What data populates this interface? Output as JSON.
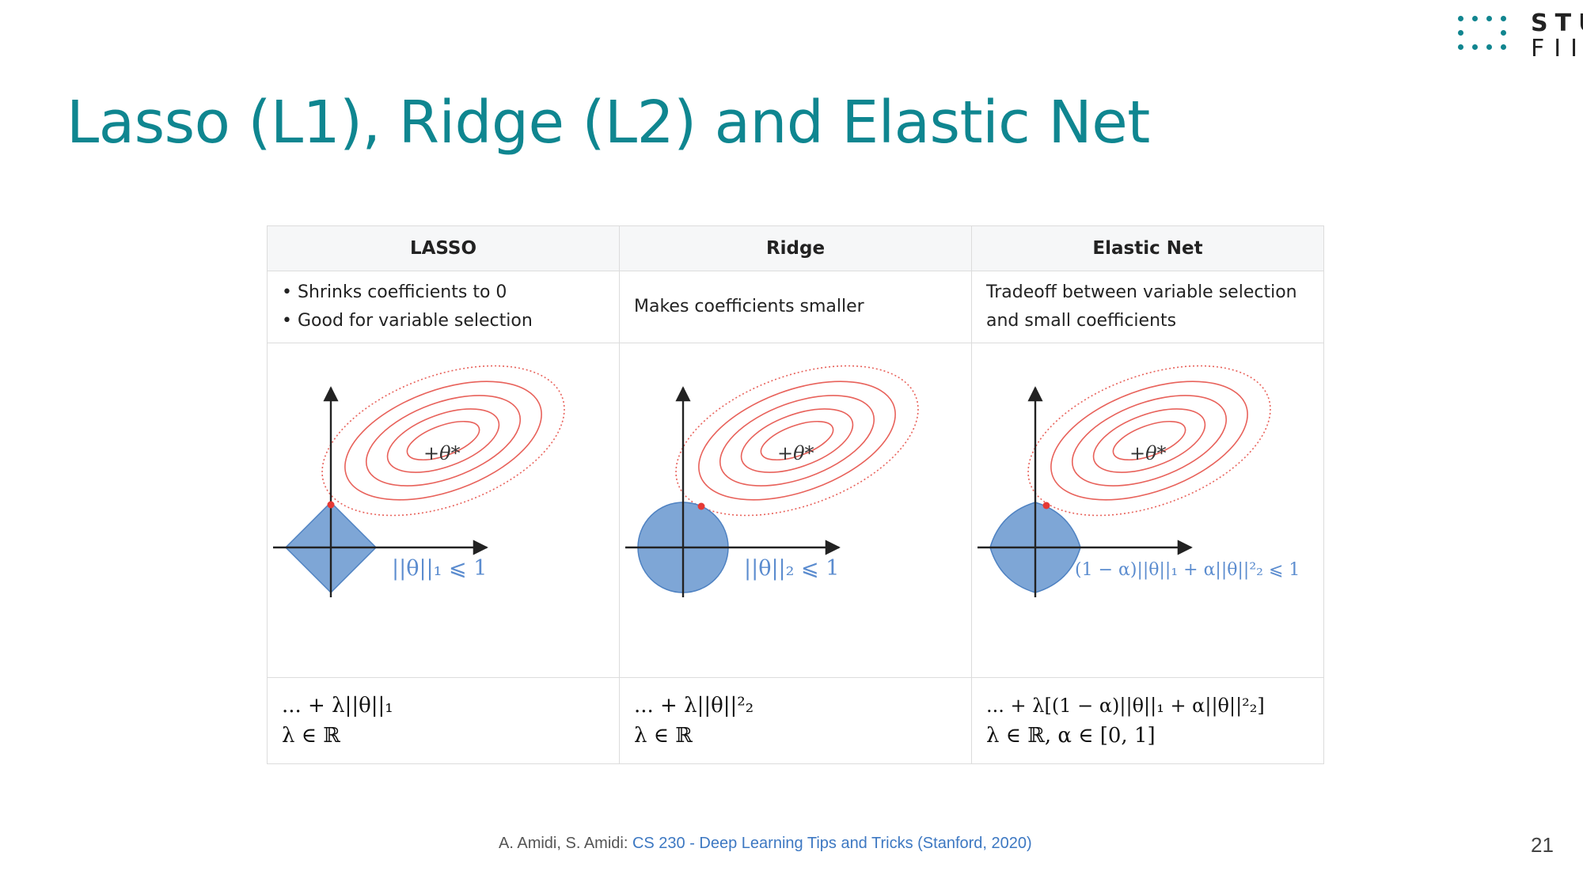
{
  "logo": {
    "line1": "STU",
    "line2": "FIIT"
  },
  "title": "Lasso (L1), Ridge (L2) and Elastic Net",
  "table": {
    "headers": [
      "LASSO",
      "Ridge",
      "Elastic Net"
    ],
    "lasso": {
      "bullets": [
        "Shrinks coefficients to 0",
        "Good for variable selection"
      ],
      "constraint_label": "||θ||₁ ⩽ 1",
      "optimum_label": "+θ*",
      "formula_line1": "... + λ||θ||₁",
      "formula_line2": "λ ∈ ℝ"
    },
    "ridge": {
      "text": "Makes coefficients smaller",
      "constraint_label": "||θ||₂ ⩽ 1",
      "optimum_label": "+θ*",
      "formula_line1": "... + λ||θ||²₂",
      "formula_line2": "λ ∈ ℝ"
    },
    "elastic": {
      "text_line1": "Tradeoff between variable selection",
      "text_line2": "and small coefficients",
      "constraint_label": "(1 − α)||θ||₁ + α||θ||²₂ ⩽ 1",
      "optimum_label": "+θ*",
      "formula_line1": "... + λ[(1 − α)||θ||₁ + α||θ||²₂]",
      "formula_line2": "λ ∈ ℝ, α ∈ [0, 1]"
    }
  },
  "citation": {
    "prefix": "A. Amidi, S. Amidi: ",
    "link_text": "CS 230 - Deep Learning Tips and Tricks (Stanford, 2020)"
  },
  "page_number": "21",
  "colors": {
    "accent": "#0f8690",
    "contour": "#e8625b",
    "constraint_fill": "#7ea6d6",
    "constraint_stroke": "#4f82c2",
    "link": "#3d78c2"
  }
}
